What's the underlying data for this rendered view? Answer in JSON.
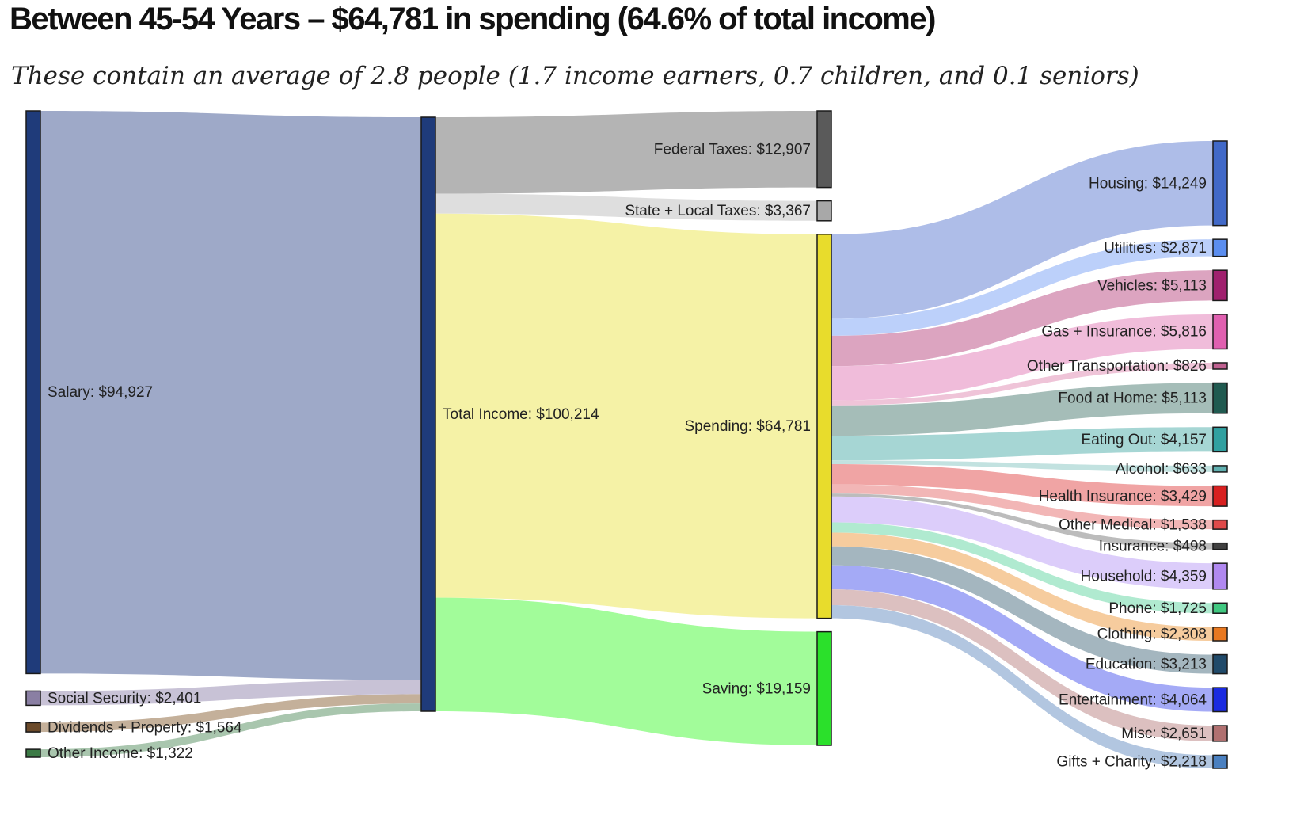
{
  "header": {
    "title": "Between 45-54 Years – $64,781 in spending (64.6% of total income)",
    "subtitle": "These contain an average of 2.8 people (1.7 income earners, 0.7 children, and 0.1 seniors)"
  },
  "chart_data": {
    "type": "sankey",
    "title": "Between 45-54 Years – $64,781 in spending (64.6% of total income)",
    "subtitle": "These contain an average of 2.8 people (1.7 income earners, 0.7 children, and 0.1 seniors)",
    "nodes": [
      {
        "id": "salary",
        "column": 0,
        "label": "Salary: $94,927",
        "value": 94927,
        "color": "#1f3b7a"
      },
      {
        "id": "ss",
        "column": 0,
        "label": "Social Security: $2,401",
        "value": 2401,
        "color": "#8a7fa3"
      },
      {
        "id": "div",
        "column": 0,
        "label": "Dividends + Property: $1,564",
        "value": 1564,
        "color": "#6b4a2a"
      },
      {
        "id": "oth",
        "column": 0,
        "label": "Other Income: $1,322",
        "value": 1322,
        "color": "#3b7a45"
      },
      {
        "id": "total",
        "column": 1,
        "label": "Total Income: $100,214",
        "value": 100214,
        "color": "#1f3b7a"
      },
      {
        "id": "fed",
        "column": 2,
        "label": "Federal Taxes: $12,907",
        "value": 12907,
        "color": "#5a5a5a"
      },
      {
        "id": "state",
        "column": 2,
        "label": "State + Local Taxes: $3,367",
        "value": 3367,
        "color": "#a8a8a8"
      },
      {
        "id": "spend",
        "column": 2,
        "label": "Spending: $64,781",
        "value": 64781,
        "color": "#e8dc2c"
      },
      {
        "id": "save",
        "column": 2,
        "label": "Saving: $19,159",
        "value": 19159,
        "color": "#2be02b"
      },
      {
        "id": "housing",
        "column": 3,
        "label": "Housing: $14,249",
        "value": 14249,
        "color": "#4169c8"
      },
      {
        "id": "util",
        "column": 3,
        "label": "Utilities: $2,871",
        "value": 2871,
        "color": "#5b8ef0"
      },
      {
        "id": "veh",
        "column": 3,
        "label": "Vehicles: $5,113",
        "value": 5113,
        "color": "#a0206e"
      },
      {
        "id": "gas",
        "column": 3,
        "label": "Gas + Insurance: $5,816",
        "value": 5816,
        "color": "#e060b0"
      },
      {
        "id": "otrans",
        "column": 3,
        "label": "Other Transportation: $826",
        "value": 826,
        "color": "#c06090"
      },
      {
        "id": "food",
        "column": 3,
        "label": "Food at Home: $5,113",
        "value": 5113,
        "color": "#205a50"
      },
      {
        "id": "eat",
        "column": 3,
        "label": "Eating Out: $4,157",
        "value": 4157,
        "color": "#30a0a0"
      },
      {
        "id": "alc",
        "column": 3,
        "label": "Alcohol: $633",
        "value": 633,
        "color": "#60b0b0"
      },
      {
        "id": "hins",
        "column": 3,
        "label": "Health Insurance: $3,429",
        "value": 3429,
        "color": "#d82020"
      },
      {
        "id": "omed",
        "column": 3,
        "label": "Other Medical: $1,538",
        "value": 1538,
        "color": "#e04a4a"
      },
      {
        "id": "ins",
        "column": 3,
        "label": "Insurance: $498",
        "value": 498,
        "color": "#404040"
      },
      {
        "id": "house",
        "column": 3,
        "label": "Household: $4,359",
        "value": 4359,
        "color": "#b088f0"
      },
      {
        "id": "phone",
        "column": 3,
        "label": "Phone: $1,725",
        "value": 1725,
        "color": "#40c880"
      },
      {
        "id": "cloth",
        "column": 3,
        "label": "Clothing: $2,308",
        "value": 2308,
        "color": "#e87820"
      },
      {
        "id": "edu",
        "column": 3,
        "label": "Education: $3,213",
        "value": 3213,
        "color": "#204a6a"
      },
      {
        "id": "ent",
        "column": 3,
        "label": "Entertainment: $4,064",
        "value": 4064,
        "color": "#1a2ae0"
      },
      {
        "id": "misc",
        "column": 3,
        "label": "Misc: $2,651",
        "value": 2651,
        "color": "#b07070"
      },
      {
        "id": "gifts",
        "column": 3,
        "label": "Gifts + Charity: $2,218",
        "value": 2218,
        "color": "#4a80c0"
      }
    ],
    "links": [
      {
        "source": "salary",
        "target": "total",
        "value": 94927,
        "color": "#9ea9c8"
      },
      {
        "source": "ss",
        "target": "total",
        "value": 2401,
        "color": "#c8c2d6"
      },
      {
        "source": "div",
        "target": "total",
        "value": 1564,
        "color": "#c4b09a"
      },
      {
        "source": "oth",
        "target": "total",
        "value": 1322,
        "color": "#a9c6ae"
      },
      {
        "source": "total",
        "target": "fed",
        "value": 12907,
        "color": "#b4b4b4"
      },
      {
        "source": "total",
        "target": "state",
        "value": 3367,
        "color": "#dedede"
      },
      {
        "source": "total",
        "target": "spend",
        "value": 64781,
        "color": "#f5f2a6"
      },
      {
        "source": "total",
        "target": "save",
        "value": 19159,
        "color": "#a2fc9a"
      },
      {
        "source": "spend",
        "target": "housing",
        "value": 14249,
        "color": "#aebde8"
      },
      {
        "source": "spend",
        "target": "util",
        "value": 2871,
        "color": "#bcd0fa"
      },
      {
        "source": "spend",
        "target": "veh",
        "value": 5113,
        "color": "#dca4c0"
      },
      {
        "source": "spend",
        "target": "gas",
        "value": 5816,
        "color": "#f0bcda"
      },
      {
        "source": "spend",
        "target": "otrans",
        "value": 826,
        "color": "#efc4d8"
      },
      {
        "source": "spend",
        "target": "food",
        "value": 5113,
        "color": "#a5bdb8"
      },
      {
        "source": "spend",
        "target": "eat",
        "value": 4157,
        "color": "#a6d6d4"
      },
      {
        "source": "spend",
        "target": "alc",
        "value": 633,
        "color": "#c2e2e0"
      },
      {
        "source": "spend",
        "target": "hins",
        "value": 3429,
        "color": "#f0a4a4"
      },
      {
        "source": "spend",
        "target": "omed",
        "value": 1538,
        "color": "#f2b6b6"
      },
      {
        "source": "spend",
        "target": "ins",
        "value": 498,
        "color": "#bcbcbc"
      },
      {
        "source": "spend",
        "target": "house",
        "value": 4359,
        "color": "#dccdfa"
      },
      {
        "source": "spend",
        "target": "phone",
        "value": 1725,
        "color": "#b0ead0"
      },
      {
        "source": "spend",
        "target": "cloth",
        "value": 2308,
        "color": "#f6cc9e"
      },
      {
        "source": "spend",
        "target": "edu",
        "value": 3213,
        "color": "#a4b6bf"
      },
      {
        "source": "spend",
        "target": "ent",
        "value": 4064,
        "color": "#a4aaf6"
      },
      {
        "source": "spend",
        "target": "misc",
        "value": 2651,
        "color": "#dcc0c0"
      },
      {
        "source": "spend",
        "target": "gifts",
        "value": 2218,
        "color": "#b2c6e0"
      }
    ]
  }
}
